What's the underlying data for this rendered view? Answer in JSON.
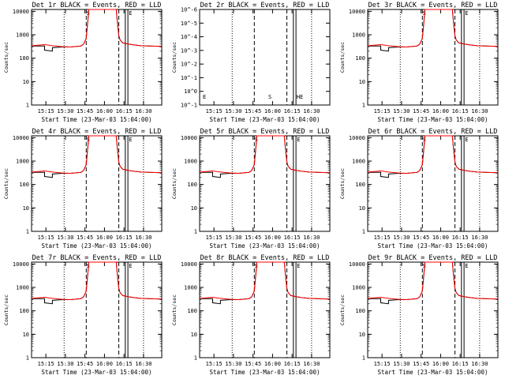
{
  "panels": [
    {
      "title": "Det 1r BLACK = Events, RED = LLD",
      "y_ticks": [
        "1",
        "10",
        "100",
        "1000",
        "10000"
      ],
      "markers": [
        "S",
        "E"
      ],
      "has_data": true
    },
    {
      "title": "Det 2r BLACK = Events, RED = LLD",
      "y_ticks": [
        "10^-1",
        "10^0",
        "10^-1",
        "10^-2",
        "10^-3",
        "10^-4",
        "10^-5",
        "10^-6"
      ],
      "markers": [
        "E",
        "S",
        "HE"
      ],
      "has_data": false
    },
    {
      "title": "Det 3r BLACK = Events, RED = LLD",
      "y_ticks": [
        "1",
        "10",
        "100",
        "1000",
        "10000"
      ],
      "markers": [
        "S",
        "E"
      ],
      "has_data": true
    },
    {
      "title": "Det 4r BLACK = Events, RED = LLD",
      "y_ticks": [
        "1",
        "10",
        "100",
        "1000",
        "10000"
      ],
      "markers": [
        "S",
        "E"
      ],
      "has_data": true
    },
    {
      "title": "Det 5r BLACK = Events, RED = LLD",
      "y_ticks": [
        "1",
        "10",
        "100",
        "1000",
        "10000"
      ],
      "markers": [
        "S",
        "E"
      ],
      "has_data": true
    },
    {
      "title": "Det 6r BLACK = Events, RED = LLD",
      "y_ticks": [
        "1",
        "10",
        "100",
        "1000",
        "10000"
      ],
      "markers": [
        "S",
        "E"
      ],
      "has_data": true
    },
    {
      "title": "Det 7r BLACK = Events, RED = LLD",
      "y_ticks": [
        "1",
        "10",
        "100",
        "1000",
        "10000"
      ],
      "markers": [
        "S",
        "E"
      ],
      "has_data": true
    },
    {
      "title": "Det 8r BLACK = Events, RED = LLD",
      "y_ticks": [
        "1",
        "10",
        "100",
        "1000",
        "10000"
      ],
      "markers": [
        "S",
        "E"
      ],
      "has_data": true
    },
    {
      "title": "Det 9r BLACK = Events, RED = LLD",
      "y_ticks": [
        "1",
        "10",
        "100",
        "1000",
        "10000"
      ],
      "markers": [
        "S",
        "E"
      ],
      "has_data": true
    }
  ],
  "ylabel": "Counts/sec",
  "xlabel": "Start Time (23-Mar-03 15:04:00)",
  "colors": {
    "events": "#000000",
    "lld": "#ff0000"
  },
  "chart_data": {
    "type": "line",
    "x_tick_labels": [
      "15:15",
      "15:30",
      "15:45",
      "16:00",
      "16:15",
      "16:30"
    ],
    "x_tick_minutes": [
      11,
      26,
      41,
      56,
      71,
      86
    ],
    "xlim_minutes": [
      0,
      100
    ],
    "y_scale": "log",
    "ylim": [
      1,
      12000
    ],
    "vertical_lines": [
      {
        "minute": 25,
        "style": "dotted"
      },
      {
        "minute": 42,
        "style": "dashed"
      },
      {
        "minute": 67,
        "style": "dashed"
      },
      {
        "minute": 72,
        "style": "solid"
      },
      {
        "minute": 74,
        "style": "solid"
      },
      {
        "minute": 86,
        "style": "dotted"
      }
    ],
    "series": [
      {
        "name": "Events",
        "x": [
          0,
          8,
          10,
          10,
          16,
          16,
          24,
          30,
          38,
          40,
          42,
          43,
          44,
          45,
          46,
          64,
          65,
          66,
          67,
          68,
          70,
          74,
          78,
          84,
          90,
          100
        ],
        "y": [
          330,
          330,
          330,
          220,
          200,
          280,
          300,
          300,
          330,
          400,
          700,
          3000,
          12000,
          12000,
          12000,
          12000,
          12000,
          3000,
          900,
          600,
          450,
          400,
          370,
          340,
          330,
          320
        ]
      },
      {
        "name": "LLD",
        "x": [
          0,
          10,
          16,
          24,
          30,
          38,
          40,
          42,
          43,
          44,
          45,
          46,
          64,
          65,
          66,
          67,
          68,
          70,
          74,
          78,
          84,
          90,
          100
        ],
        "y": [
          340,
          380,
          340,
          310,
          300,
          330,
          400,
          700,
          3000,
          12000,
          12000,
          12000,
          12000,
          12000,
          3000,
          900,
          600,
          450,
          400,
          370,
          340,
          330,
          320
        ]
      }
    ]
  }
}
